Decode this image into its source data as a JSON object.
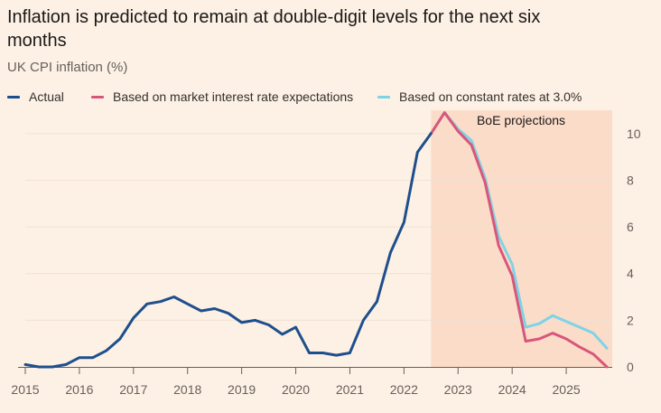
{
  "header": {
    "title": "Inflation is predicted to remain at double-digit levels for the next six months",
    "subtitle": "UK CPI inflation (%)"
  },
  "legend": {
    "items": [
      {
        "label": "Actual",
        "color": "#1e4f8c"
      },
      {
        "label": "Based on market interest rate expectations",
        "color": "#d9567a"
      },
      {
        "label": "Based on constant rates at 3.0%",
        "color": "#7fd3e6"
      }
    ]
  },
  "colors": {
    "background": "#fdf1e5",
    "projection_band": "#fbdcc8",
    "gridline": "#f0e2d4",
    "axis": "#66605c"
  },
  "chart_data": {
    "type": "line",
    "title": "Inflation is predicted to remain at double-digit levels for the next six months",
    "ylabel": "UK CPI inflation (%)",
    "xlabel": "",
    "xlim": [
      2015.0,
      2025.85
    ],
    "ylim": [
      0,
      11
    ],
    "x_ticks": [
      2015,
      2016,
      2017,
      2018,
      2019,
      2020,
      2021,
      2022,
      2023,
      2024,
      2025
    ],
    "y_ticks": [
      0,
      2,
      4,
      6,
      8,
      10
    ],
    "projection_band": {
      "label": "BoE projections",
      "x_start": 2022.5,
      "x_end": 2025.85
    },
    "series": [
      {
        "name": "Actual",
        "color": "#1e4f8c",
        "x": [
          2015.0,
          2015.25,
          2015.5,
          2015.75,
          2016.0,
          2016.25,
          2016.5,
          2016.75,
          2017.0,
          2017.25,
          2017.5,
          2017.75,
          2018.0,
          2018.25,
          2018.5,
          2018.75,
          2019.0,
          2019.25,
          2019.5,
          2019.75,
          2020.0,
          2020.25,
          2020.5,
          2020.75,
          2021.0,
          2021.25,
          2021.5,
          2021.75,
          2022.0,
          2022.25,
          2022.5
        ],
        "values": [
          0.1,
          0.0,
          0.0,
          0.1,
          0.4,
          0.4,
          0.7,
          1.2,
          2.1,
          2.7,
          2.8,
          3.0,
          2.7,
          2.4,
          2.5,
          2.3,
          1.9,
          2.0,
          1.8,
          1.4,
          1.7,
          0.6,
          0.6,
          0.5,
          0.6,
          2.0,
          2.8,
          4.9,
          6.2,
          9.2,
          10.0
        ]
      },
      {
        "name": "Based on market interest rate expectations",
        "color": "#d9567a",
        "x": [
          2022.5,
          2022.75,
          2023.0,
          2023.25,
          2023.5,
          2023.75,
          2024.0,
          2024.25,
          2024.5,
          2024.75,
          2025.0,
          2025.25,
          2025.5,
          2025.75
        ],
        "values": [
          10.0,
          10.9,
          10.1,
          9.5,
          7.9,
          5.2,
          3.9,
          1.1,
          1.2,
          1.45,
          1.2,
          0.85,
          0.55,
          0.0
        ]
      },
      {
        "name": "Based on constant rates at 3.0%",
        "color": "#7fd3e6",
        "x": [
          2022.5,
          2022.75,
          2023.0,
          2023.25,
          2023.5,
          2023.75,
          2024.0,
          2024.25,
          2024.5,
          2024.75,
          2025.0,
          2025.25,
          2025.5,
          2025.75
        ],
        "values": [
          10.0,
          10.9,
          10.2,
          9.7,
          8.1,
          5.6,
          4.4,
          1.7,
          1.85,
          2.2,
          1.95,
          1.7,
          1.45,
          0.8
        ]
      }
    ]
  }
}
